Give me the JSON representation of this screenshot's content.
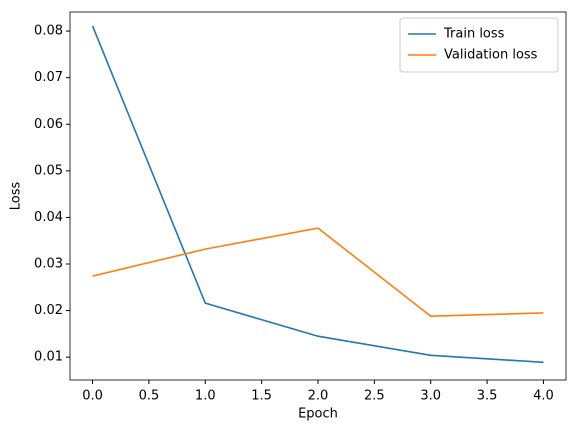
{
  "chart_data": {
    "type": "line",
    "x_label": "Epoch",
    "y_label": "Loss",
    "x": [
      0,
      1,
      2,
      3,
      4
    ],
    "series": [
      {
        "name": "Train loss",
        "color": "#1f77b4",
        "values": [
          0.0811,
          0.0216,
          0.0145,
          0.0104,
          0.0089
        ]
      },
      {
        "name": "Validation loss",
        "color": "#ff7f0e",
        "values": [
          0.0274,
          0.0332,
          0.0377,
          0.0188,
          0.0195
        ]
      }
    ],
    "xlim": [
      -0.2,
      4.2
    ],
    "ylim": [
      0.0051,
      0.0841
    ],
    "xticks": [
      {
        "value": 0,
        "label": "0.0"
      },
      {
        "value": 0.5,
        "label": "0.5"
      },
      {
        "value": 1,
        "label": "1.0"
      },
      {
        "value": 1.5,
        "label": "1.5"
      },
      {
        "value": 2,
        "label": "2.0"
      },
      {
        "value": 2.5,
        "label": "2.5"
      },
      {
        "value": 3,
        "label": "3.0"
      },
      {
        "value": 3.5,
        "label": "3.5"
      },
      {
        "value": 4,
        "label": "4.0"
      }
    ],
    "yticks": [
      0.01,
      0.02,
      0.03,
      0.04,
      0.05,
      0.06,
      0.07,
      0.08
    ],
    "legend": "upper right"
  }
}
